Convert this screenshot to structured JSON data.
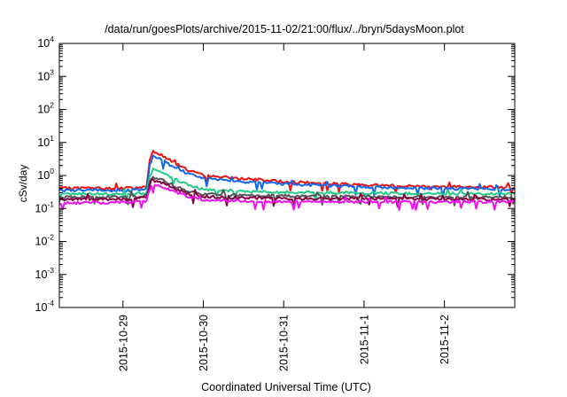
{
  "chart_data": {
    "type": "line",
    "title": "/data/run/goesPlots/archive/2015-11-02/21:00/flux/../bryn/5daysMoon.plot",
    "xlabel": "Coordinated Universal Time (UTC)",
    "ylabel": "cSv/day",
    "yscale": "log",
    "ylim": [
      0.0001,
      10000
    ],
    "y_ticks": [
      {
        "value": 0.0001,
        "base": "10",
        "exp": "-4"
      },
      {
        "value": 0.001,
        "base": "10",
        "exp": "-3"
      },
      {
        "value": 0.01,
        "base": "10",
        "exp": "-2"
      },
      {
        "value": 0.1,
        "base": "10",
        "exp": "-1"
      },
      {
        "value": 1,
        "base": "10",
        "exp": "0"
      },
      {
        "value": 10,
        "base": "10",
        "exp": "1"
      },
      {
        "value": 100,
        "base": "10",
        "exp": "2"
      },
      {
        "value": 1000,
        "base": "10",
        "exp": "3"
      },
      {
        "value": 10000,
        "base": "10",
        "exp": "4"
      }
    ],
    "xlim": [
      "2015-10-28T05:00",
      "2015-11-02T21:00"
    ],
    "x_ticks": [
      {
        "value": "2015-10-29",
        "label": "2015-10-29"
      },
      {
        "value": "2015-10-30",
        "label": "2015-10-30"
      },
      {
        "value": "2015-10-31",
        "label": "2015-10-31"
      },
      {
        "value": "2015-11-01",
        "label": "2015-11-1"
      },
      {
        "value": "2015-11-02",
        "label": "2015-11-2"
      }
    ],
    "grid": false,
    "legend": "none",
    "series": [
      {
        "color": "#ee1111",
        "points": [
          [
            "2015-10-28T05:00",
            0.4
          ],
          [
            "2015-10-28T12:00",
            0.42
          ],
          [
            "2015-10-28T20:00",
            0.4
          ],
          [
            "2015-10-29T04:00",
            0.42
          ],
          [
            "2015-10-29T07:00",
            0.45
          ],
          [
            "2015-10-29T08:00",
            3.0
          ],
          [
            "2015-10-29T09:00",
            5.5
          ],
          [
            "2015-10-29T12:00",
            4.0
          ],
          [
            "2015-10-29T16:00",
            2.2
          ],
          [
            "2015-10-29T20:00",
            1.4
          ],
          [
            "2015-10-30T00:00",
            1.0
          ],
          [
            "2015-10-30T06:00",
            0.9
          ],
          [
            "2015-10-30T12:00",
            0.8
          ],
          [
            "2015-10-30T18:00",
            0.72
          ],
          [
            "2015-10-31T00:00",
            0.65
          ],
          [
            "2015-10-31T12:00",
            0.58
          ],
          [
            "2015-11-01T00:00",
            0.52
          ],
          [
            "2015-11-01T12:00",
            0.48
          ],
          [
            "2015-11-02T00:00",
            0.46
          ],
          [
            "2015-11-02T12:00",
            0.45
          ],
          [
            "2015-11-02T21:00",
            0.44
          ]
        ]
      },
      {
        "color": "#1166ee",
        "points": [
          [
            "2015-10-28T05:00",
            0.35
          ],
          [
            "2015-10-28T12:00",
            0.36
          ],
          [
            "2015-10-28T20:00",
            0.35
          ],
          [
            "2015-10-29T04:00",
            0.36
          ],
          [
            "2015-10-29T07:00",
            0.38
          ],
          [
            "2015-10-29T08:00",
            2.0
          ],
          [
            "2015-10-29T09:00",
            3.8
          ],
          [
            "2015-10-29T12:00",
            2.8
          ],
          [
            "2015-10-29T16:00",
            1.6
          ],
          [
            "2015-10-29T20:00",
            1.1
          ],
          [
            "2015-10-30T00:00",
            0.85
          ],
          [
            "2015-10-30T06:00",
            0.75
          ],
          [
            "2015-10-30T12:00",
            0.65
          ],
          [
            "2015-10-30T18:00",
            0.6
          ],
          [
            "2015-10-31T00:00",
            0.55
          ],
          [
            "2015-10-31T12:00",
            0.5
          ],
          [
            "2015-11-01T00:00",
            0.45
          ],
          [
            "2015-11-01T12:00",
            0.42
          ],
          [
            "2015-11-02T00:00",
            0.4
          ],
          [
            "2015-11-02T12:00",
            0.39
          ],
          [
            "2015-11-02T21:00",
            0.38
          ]
        ]
      },
      {
        "color": "#22cc88",
        "points": [
          [
            "2015-10-28T05:00",
            0.27
          ],
          [
            "2015-10-28T12:00",
            0.28
          ],
          [
            "2015-10-28T20:00",
            0.27
          ],
          [
            "2015-10-29T04:00",
            0.28
          ],
          [
            "2015-10-29T07:00",
            0.3
          ],
          [
            "2015-10-29T08:00",
            0.9
          ],
          [
            "2015-10-29T09:00",
            1.5
          ],
          [
            "2015-10-29T12:00",
            1.2
          ],
          [
            "2015-10-29T16:00",
            0.75
          ],
          [
            "2015-10-29T20:00",
            0.5
          ],
          [
            "2015-10-30T00:00",
            0.38
          ],
          [
            "2015-10-30T12:00",
            0.33
          ],
          [
            "2015-10-31T00:00",
            0.31
          ],
          [
            "2015-10-31T12:00",
            0.3
          ],
          [
            "2015-11-01T00:00",
            0.29
          ],
          [
            "2015-11-02T00:00",
            0.28
          ],
          [
            "2015-11-02T21:00",
            0.28
          ]
        ]
      },
      {
        "color": "#555555",
        "points": [
          [
            "2015-10-28T05:00",
            0.22
          ],
          [
            "2015-10-28T20:00",
            0.22
          ],
          [
            "2015-10-29T04:00",
            0.23
          ],
          [
            "2015-10-29T07:00",
            0.25
          ],
          [
            "2015-10-29T08:00",
            0.6
          ],
          [
            "2015-10-29T09:00",
            0.85
          ],
          [
            "2015-10-29T12:00",
            0.7
          ],
          [
            "2015-10-29T16:00",
            0.45
          ],
          [
            "2015-10-29T20:00",
            0.32
          ],
          [
            "2015-10-30T00:00",
            0.27
          ],
          [
            "2015-10-30T12:00",
            0.25
          ],
          [
            "2015-10-31T00:00",
            0.24
          ],
          [
            "2015-11-01T00:00",
            0.23
          ],
          [
            "2015-11-02T00:00",
            0.22
          ],
          [
            "2015-11-02T21:00",
            0.22
          ]
        ]
      },
      {
        "color": "#880044",
        "points": [
          [
            "2015-10-28T05:00",
            0.19
          ],
          [
            "2015-10-28T20:00",
            0.19
          ],
          [
            "2015-10-29T04:00",
            0.2
          ],
          [
            "2015-10-29T07:00",
            0.22
          ],
          [
            "2015-10-29T08:00",
            0.5
          ],
          [
            "2015-10-29T09:00",
            0.7
          ],
          [
            "2015-10-29T12:00",
            0.58
          ],
          [
            "2015-10-29T16:00",
            0.38
          ],
          [
            "2015-10-29T20:00",
            0.27
          ],
          [
            "2015-10-30T00:00",
            0.23
          ],
          [
            "2015-10-30T12:00",
            0.21
          ],
          [
            "2015-10-31T00:00",
            0.2
          ],
          [
            "2015-11-01T00:00",
            0.2
          ],
          [
            "2015-11-02T00:00",
            0.19
          ],
          [
            "2015-11-02T21:00",
            0.19
          ]
        ]
      },
      {
        "color": "#ee11ee",
        "points": [
          [
            "2015-10-28T05:00",
            0.15
          ],
          [
            "2015-10-28T20:00",
            0.15
          ],
          [
            "2015-10-29T04:00",
            0.16
          ],
          [
            "2015-10-29T07:00",
            0.17
          ],
          [
            "2015-10-29T08:00",
            0.38
          ],
          [
            "2015-10-29T09:00",
            0.55
          ],
          [
            "2015-10-29T12:00",
            0.45
          ],
          [
            "2015-10-29T16:00",
            0.3
          ],
          [
            "2015-10-29T20:00",
            0.22
          ],
          [
            "2015-10-30T00:00",
            0.18
          ],
          [
            "2015-10-30T12:00",
            0.17
          ],
          [
            "2015-10-31T00:00",
            0.16
          ],
          [
            "2015-11-01T00:00",
            0.16
          ],
          [
            "2015-11-02T00:00",
            0.16
          ],
          [
            "2015-11-02T21:00",
            0.16
          ]
        ]
      }
    ]
  }
}
